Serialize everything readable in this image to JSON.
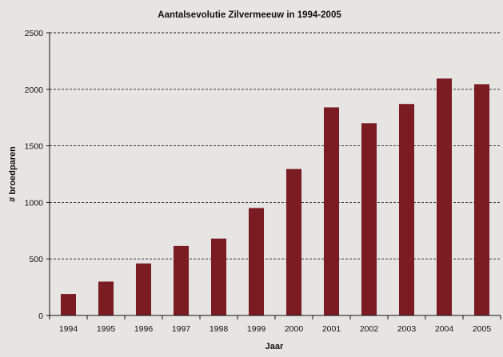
{
  "chart_data": {
    "type": "bar",
    "title": "Aantalsevolutie Zilvermeeuw in 1994-2005",
    "xlabel": "Jaar",
    "ylabel": "# broedparen",
    "categories": [
      "1994",
      "1995",
      "1996",
      "1997",
      "1998",
      "1999",
      "2000",
      "2001",
      "2002",
      "2003",
      "2004",
      "2005"
    ],
    "values": [
      190,
      300,
      460,
      615,
      680,
      950,
      1295,
      1840,
      1700,
      1870,
      2095,
      2045
    ],
    "ylim": [
      0,
      2500
    ],
    "yticks": [
      0,
      500,
      1000,
      1500,
      2000,
      2500
    ],
    "grid": true,
    "legend": "none",
    "colors": {
      "bar": "#7a1c22",
      "background": "#e6e5e4",
      "text": "#111111"
    }
  }
}
